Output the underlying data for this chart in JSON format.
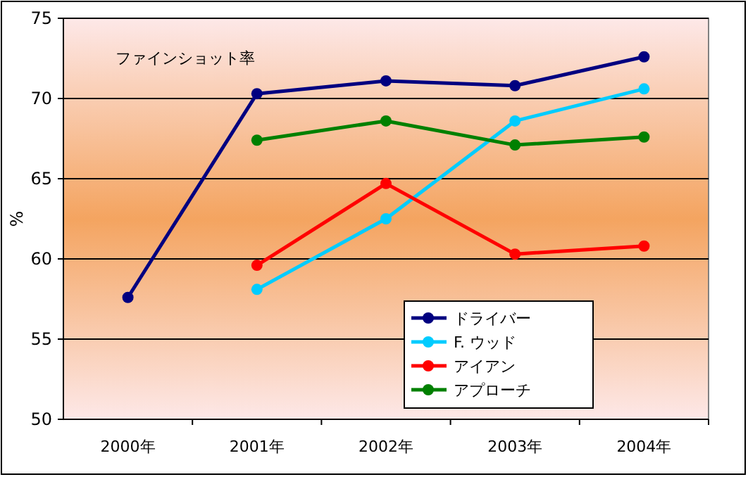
{
  "chart_data": {
    "type": "line",
    "ylabel": "%",
    "categories": [
      "2000年",
      "2001年",
      "2002年",
      "2003年",
      "2004年"
    ],
    "ylim": [
      50,
      75
    ],
    "yticks": [
      50,
      55,
      60,
      65,
      70,
      75
    ],
    "grid": "y",
    "legend": "bottom right",
    "marker": "circle",
    "line_style": "solid",
    "annotations": [
      "ファインショット率"
    ],
    "series": [
      {
        "name": "ドライバー",
        "color": "#000080",
        "values": [
          57.6,
          70.3,
          71.1,
          70.8,
          72.6
        ]
      },
      {
        "name": "F. ウッド",
        "color": "#00ccff",
        "values": [
          null,
          58.1,
          62.5,
          68.6,
          70.6
        ]
      },
      {
        "name": "アイアン",
        "color": "#ff0000",
        "values": [
          null,
          59.6,
          64.7,
          60.3,
          60.8
        ]
      },
      {
        "name": "アプローチ",
        "color": "#008000",
        "values": [
          null,
          67.4,
          68.6,
          67.1,
          67.6
        ]
      }
    ]
  }
}
